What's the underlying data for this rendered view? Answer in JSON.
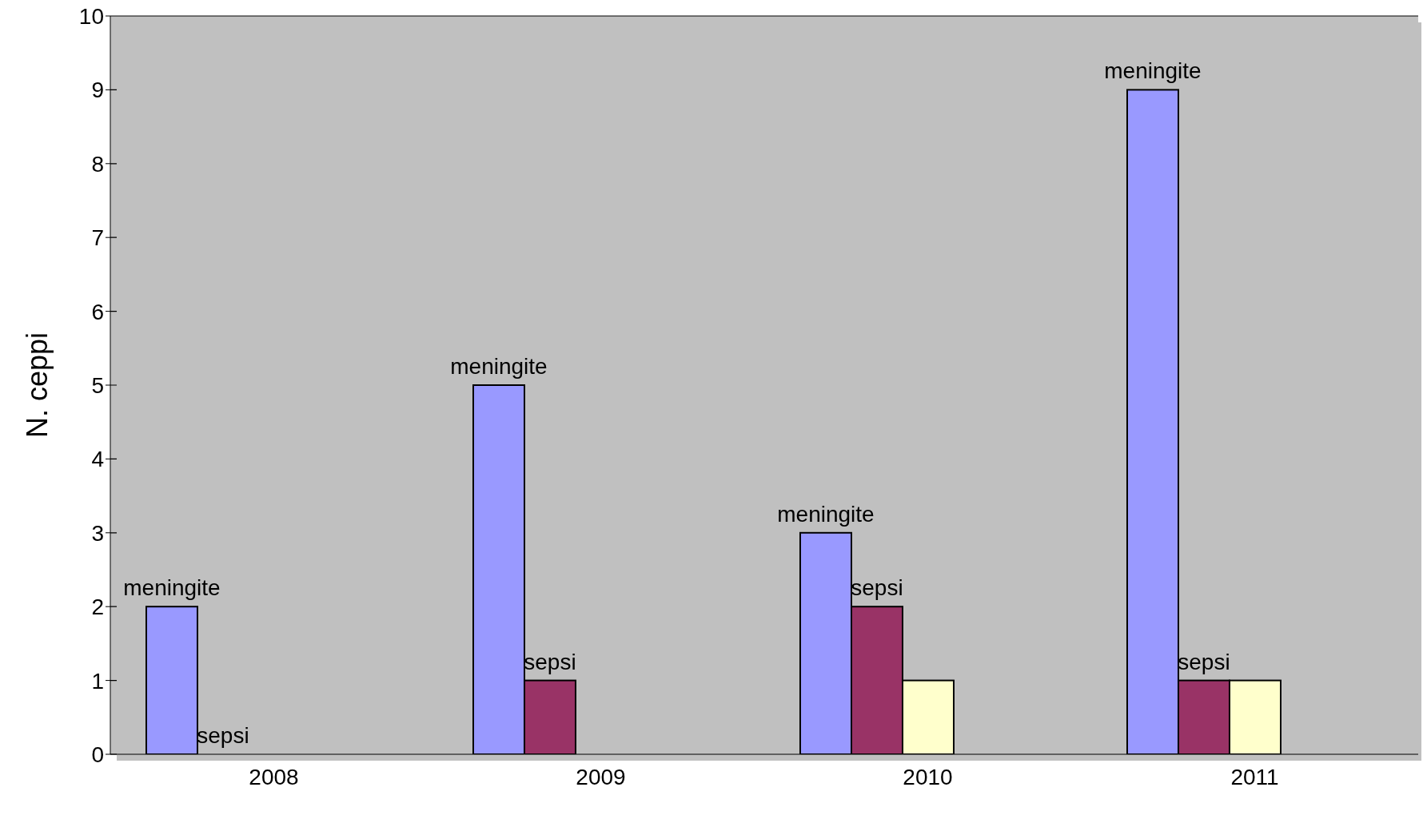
{
  "chart_data": {
    "type": "bar",
    "ylabel": "N. ceppi",
    "categories": [
      "2008",
      "2009",
      "2010",
      "2011"
    ],
    "series": [
      {
        "name": "meningite",
        "color": "#9999ff",
        "values": [
          2,
          5,
          3,
          9
        ]
      },
      {
        "name": "sepsi",
        "color": "#993366",
        "values": [
          0,
          1,
          2,
          1
        ]
      },
      {
        "color": "#ffffcc",
        "values": [
          null,
          null,
          1,
          1
        ]
      }
    ],
    "ylim": [
      0,
      10
    ],
    "yticks": [
      0,
      1,
      2,
      3,
      4,
      5,
      6,
      7,
      8,
      9,
      10
    ],
    "grid": "y",
    "legend": false
  }
}
